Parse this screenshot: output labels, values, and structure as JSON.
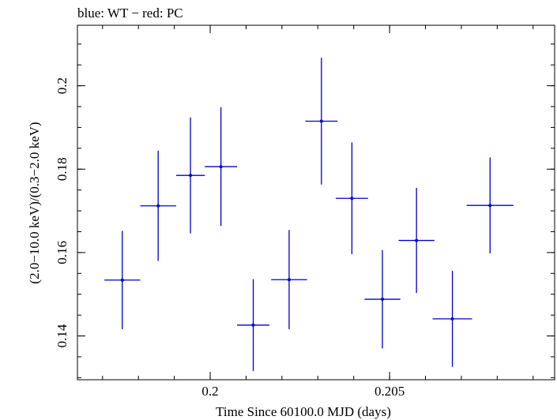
{
  "chart_data": {
    "type": "scatter",
    "title": "blue: WT − red: PC",
    "xlabel": "Time Since 60100.0 MJD (days)",
    "ylabel": "(2.0−10.0 keV)/(0.3−2.0 keV)",
    "xlim": [
      0.1963,
      0.2096
    ],
    "ylim": [
      0.1295,
      0.2145
    ],
    "x_ticks": [
      {
        "value": 0.2,
        "label": "0.2"
      },
      {
        "value": 0.205,
        "label": "0.205"
      }
    ],
    "y_ticks": [
      {
        "value": 0.14,
        "label": "0.14"
      },
      {
        "value": 0.16,
        "label": "0.16"
      },
      {
        "value": 0.18,
        "label": "0.18"
      },
      {
        "value": 0.2,
        "label": "0.2"
      }
    ],
    "grid": false,
    "series": [
      {
        "color": "#0000cc",
        "points": [
          {
            "x": 0.19755,
            "xerr": 0.0005,
            "y": 0.1534,
            "yerr": 0.0118
          },
          {
            "x": 0.19855,
            "xerr": 0.0005,
            "y": 0.1712,
            "yerr": 0.0132
          },
          {
            "x": 0.19945,
            "xerr": 0.0004,
            "y": 0.1785,
            "yerr": 0.0139
          },
          {
            "x": 0.2003,
            "xerr": 0.00045,
            "y": 0.1806,
            "yerr": 0.0142
          },
          {
            "x": 0.2012,
            "xerr": 0.00045,
            "y": 0.1426,
            "yerr": 0.011
          },
          {
            "x": 0.2022,
            "xerr": 0.0005,
            "y": 0.1535,
            "yerr": 0.0119
          },
          {
            "x": 0.2031,
            "xerr": 0.00045,
            "y": 0.1915,
            "yerr": 0.0152
          },
          {
            "x": 0.20395,
            "xerr": 0.00045,
            "y": 0.173,
            "yerr": 0.0134
          },
          {
            "x": 0.2048,
            "xerr": 0.0005,
            "y": 0.1488,
            "yerr": 0.0118
          },
          {
            "x": 0.20575,
            "xerr": 0.0005,
            "y": 0.1629,
            "yerr": 0.0126
          },
          {
            "x": 0.20675,
            "xerr": 0.00055,
            "y": 0.1441,
            "yerr": 0.0115
          },
          {
            "x": 0.2078,
            "xerr": 0.00065,
            "y": 0.1713,
            "yerr": 0.0115
          }
        ]
      }
    ]
  }
}
